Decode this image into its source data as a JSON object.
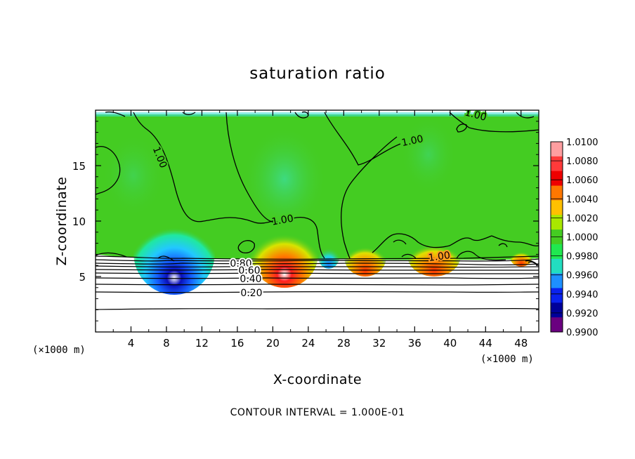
{
  "chart_data": {
    "type": "heatmap",
    "title": "saturation ratio",
    "xlabel": "X-coordinate",
    "ylabel": "Z-coordinate",
    "x_unit": "(×1000 m)",
    "z_unit": "(×1000 m)",
    "xlim": [
      0,
      50
    ],
    "ylim": [
      0,
      20
    ],
    "x_ticks": [
      "4",
      "8",
      "12",
      "16",
      "20",
      "24",
      "28",
      "32",
      "36",
      "40",
      "44",
      "48"
    ],
    "x_tick_values": [
      4,
      8,
      12,
      16,
      20,
      24,
      28,
      32,
      36,
      40,
      44,
      48
    ],
    "y_ticks": [
      "5",
      "10",
      "15"
    ],
    "y_tick_values": [
      5,
      10,
      15
    ],
    "colorbar": {
      "labels": [
        "1.0100",
        "1.0080",
        "1.0060",
        "1.0040",
        "1.0020",
        "1.0000",
        "0.9980",
        "0.9960",
        "0.9940",
        "0.9920",
        "0.9900"
      ],
      "colors": [
        "#ff9ea0",
        "#ff3a3a",
        "#ee0000",
        "#ff7700",
        "#ffc000",
        "#a9e800",
        "#44cc22",
        "#20e850",
        "#22ddc0",
        "#1e90ff",
        "#0a22ee",
        "#000099",
        "#6a0080"
      ]
    },
    "contour_interval": "CONTOUR INTERVAL = 1.000E-01",
    "contour_labels": [
      "1.00",
      "1.00",
      "1.00",
      "1.00",
      "1.00",
      "0.80",
      "0.60",
      "0.40",
      "0.20"
    ],
    "contour_levels": [
      0.2,
      0.4,
      0.6,
      0.8,
      1.0
    ],
    "features": {
      "cloud_base_z": 7.0,
      "dry_below_z": 6.5,
      "subsaturated_maxima_x": [
        8,
        26
      ],
      "supersaturated_maxima_x": [
        21,
        30,
        38.5
      ]
    }
  }
}
